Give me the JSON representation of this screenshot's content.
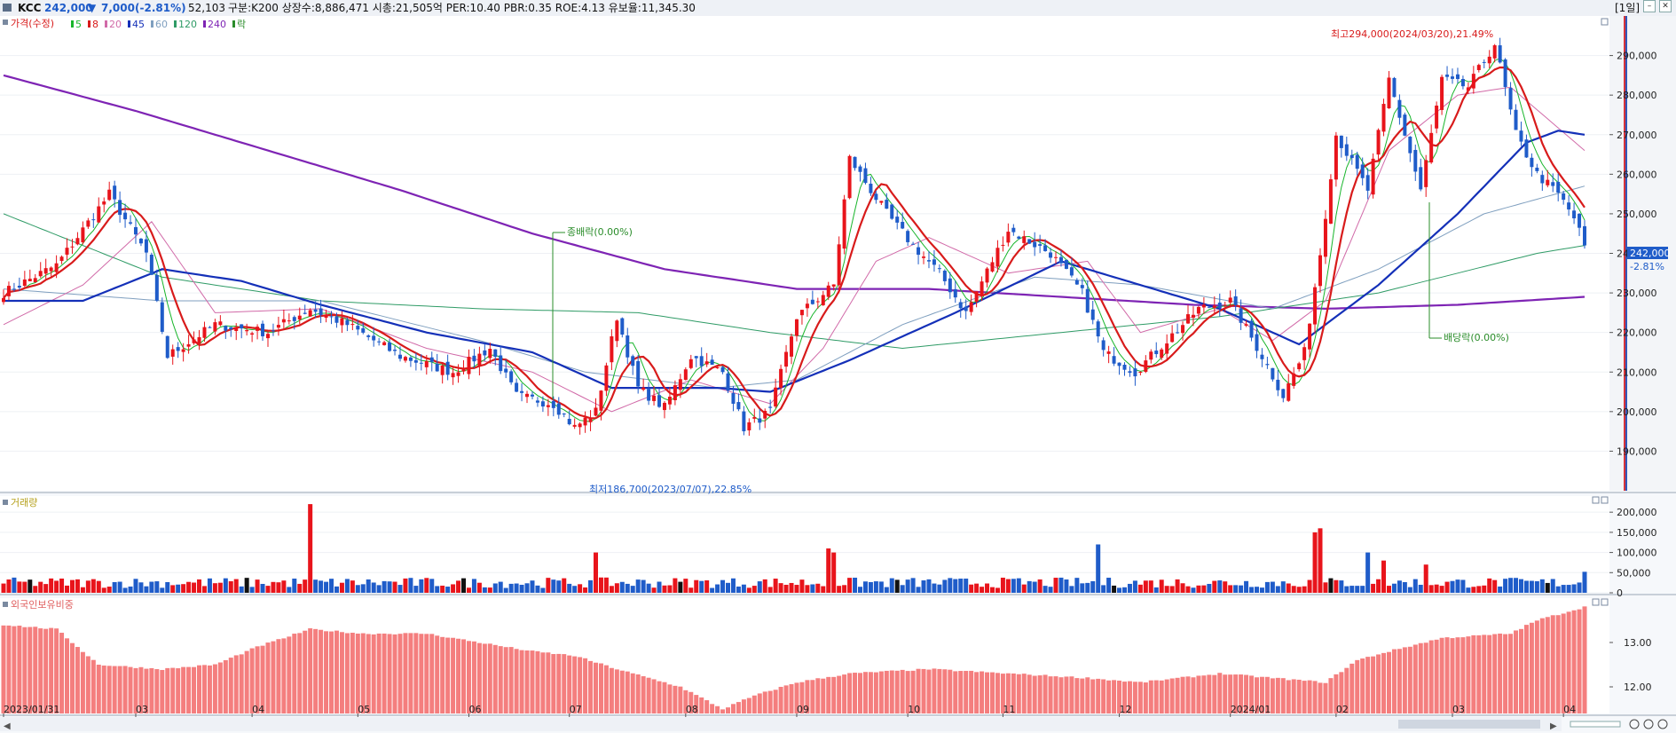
{
  "header": {
    "name": "KCC",
    "price": "242,000",
    "change_arrow": "▼",
    "change": "7,000",
    "change_pct": "(-2.81%)",
    "volume": "52,103",
    "info": "구분:K200  상장수:8,886,471  시총:21,505억  PER:10.40  PBR:0.35  ROE:4.13  유보율:11,345.30",
    "period": "[1일]"
  },
  "colors": {
    "up": "#e8141b",
    "down": "#1f5cc9",
    "ma5": "#18b52b",
    "ma8": "#d81b1b",
    "ma20": "#d16aa8",
    "ma45": "#1430b8",
    "ma60": "#7f9fbf",
    "ma120": "#2f9b66",
    "ma240": "#7e24b4",
    "foreign": "#f47e7e"
  },
  "legend": {
    "price_title": "가격(수정)",
    "items": [
      {
        "label": "5",
        "color": "#18b52b"
      },
      {
        "label": "8",
        "color": "#d81b1b"
      },
      {
        "label": "20",
        "color": "#d16aa8"
      },
      {
        "label": "45",
        "color": "#1430b8"
      },
      {
        "label": "60",
        "color": "#7f9fbf"
      },
      {
        "label": "120",
        "color": "#2f9b66"
      },
      {
        "label": "240",
        "color": "#7e24b4"
      },
      {
        "label": "락",
        "color": "#2a8c2a"
      }
    ],
    "volume_title": "거래량",
    "foreign_title": "외국인보유비중"
  },
  "annotations": {
    "high": "최고294,000(2024/03/20),21.49%",
    "low": "최저186,700(2023/07/07),22.85%",
    "ex_rights": "종배락(0.00%)",
    "ex_dividend": "배당락(0.00%)",
    "last_price": "242,000",
    "last_change": "-2.81%"
  },
  "chart_data": [
    {
      "type": "candlestick",
      "title": "가격(수정)",
      "y_ticks": [
        190000,
        200000,
        210000,
        220000,
        230000,
        240000,
        250000,
        260000,
        270000,
        280000,
        290000
      ],
      "y_tick_labels": [
        "190,000",
        "200,000",
        "210,000",
        "220,000",
        "230,000",
        "240,000",
        "250,000",
        "260,000",
        "270,000",
        "280,000",
        "290,000"
      ],
      "ylim": [
        180000,
        300000
      ],
      "x_ticks": [
        "2023/01/31",
        "03",
        "04",
        "05",
        "06",
        "07",
        "08",
        "09",
        "10",
        "11",
        "12",
        "2024/01",
        "02",
        "03",
        "04"
      ],
      "x_tick_index": [
        0,
        25,
        47,
        67,
        88,
        107,
        129,
        150,
        171,
        189,
        211,
        232,
        252,
        274,
        295
      ],
      "close_anchors": [
        [
          0,
          230000
        ],
        [
          10,
          237000
        ],
        [
          20,
          255000
        ],
        [
          27,
          240000
        ],
        [
          31,
          214000
        ],
        [
          40,
          222000
        ],
        [
          50,
          220000
        ],
        [
          58,
          226000
        ],
        [
          65,
          222000
        ],
        [
          75,
          214000
        ],
        [
          85,
          210000
        ],
        [
          92,
          216000
        ],
        [
          97,
          204000
        ],
        [
          104,
          202000
        ],
        [
          108,
          196000
        ],
        [
          112,
          200000
        ],
        [
          116,
          224000
        ],
        [
          120,
          206000
        ],
        [
          125,
          201000
        ],
        [
          130,
          214000
        ],
        [
          136,
          210000
        ],
        [
          140,
          196000
        ],
        [
          145,
          200000
        ],
        [
          150,
          224000
        ],
        [
          157,
          232000
        ],
        [
          160,
          264000
        ],
        [
          167,
          250000
        ],
        [
          172,
          242000
        ],
        [
          177,
          235000
        ],
        [
          182,
          225000
        ],
        [
          190,
          246000
        ],
        [
          198,
          240000
        ],
        [
          204,
          230000
        ],
        [
          208,
          215000
        ],
        [
          214,
          210000
        ],
        [
          220,
          218000
        ],
        [
          226,
          226000
        ],
        [
          232,
          228000
        ],
        [
          238,
          214000
        ],
        [
          242,
          204000
        ],
        [
          246,
          215000
        ],
        [
          249,
          240000
        ],
        [
          252,
          270000
        ],
        [
          258,
          256000
        ],
        [
          262,
          284000
        ],
        [
          268,
          256000
        ],
        [
          272,
          284000
        ],
        [
          277,
          282000
        ],
        [
          282,
          293000
        ],
        [
          286,
          270000
        ],
        [
          290,
          260000
        ],
        [
          294,
          255000
        ],
        [
          297,
          249000
        ],
        [
          299,
          242000
        ]
      ],
      "high": {
        "date": "2024/03/20",
        "value": 294000,
        "change_pct": 21.49
      },
      "low": {
        "date": "2023/07/07",
        "value": 186700,
        "change_pct": 22.85
      },
      "last_close": 242000,
      "last_change_pct": -2.81,
      "ma_anchors": {
        "ma240": [
          [
            0,
            285000
          ],
          [
            25,
            276000
          ],
          [
            50,
            266000
          ],
          [
            75,
            256000
          ],
          [
            100,
            245000
          ],
          [
            125,
            236000
          ],
          [
            150,
            231000
          ],
          [
            175,
            231000
          ],
          [
            200,
            229000
          ],
          [
            225,
            227000
          ],
          [
            250,
            226000
          ],
          [
            275,
            227000
          ],
          [
            299,
            229000
          ]
        ],
        "ma120": [
          [
            0,
            250000
          ],
          [
            30,
            234000
          ],
          [
            60,
            228000
          ],
          [
            90,
            226000
          ],
          [
            120,
            225000
          ],
          [
            145,
            220000
          ],
          [
            170,
            216000
          ],
          [
            200,
            220000
          ],
          [
            230,
            224000
          ],
          [
            260,
            230000
          ],
          [
            290,
            240000
          ],
          [
            299,
            242000
          ]
        ],
        "ma60": [
          [
            0,
            231000
          ],
          [
            30,
            228000
          ],
          [
            60,
            228000
          ],
          [
            90,
            218000
          ],
          [
            110,
            210000
          ],
          [
            135,
            206000
          ],
          [
            150,
            208000
          ],
          [
            170,
            222000
          ],
          [
            195,
            234000
          ],
          [
            215,
            232000
          ],
          [
            240,
            226000
          ],
          [
            260,
            236000
          ],
          [
            280,
            250000
          ],
          [
            299,
            257000
          ]
        ],
        "ma45": [
          [
            0,
            228000
          ],
          [
            15,
            228000
          ],
          [
            30,
            236000
          ],
          [
            45,
            233000
          ],
          [
            60,
            227000
          ],
          [
            80,
            220000
          ],
          [
            100,
            215000
          ],
          [
            115,
            206000
          ],
          [
            135,
            206000
          ],
          [
            145,
            205000
          ],
          [
            160,
            213000
          ],
          [
            180,
            225000
          ],
          [
            200,
            238000
          ],
          [
            215,
            232000
          ],
          [
            230,
            226000
          ],
          [
            245,
            217000
          ],
          [
            260,
            232000
          ],
          [
            275,
            250000
          ],
          [
            288,
            268000
          ],
          [
            294,
            271000
          ],
          [
            299,
            270000
          ]
        ],
        "ma20": [
          [
            0,
            222000
          ],
          [
            15,
            232000
          ],
          [
            28,
            248000
          ],
          [
            40,
            225000
          ],
          [
            60,
            226000
          ],
          [
            80,
            216000
          ],
          [
            100,
            210000
          ],
          [
            115,
            200000
          ],
          [
            130,
            208000
          ],
          [
            145,
            202000
          ],
          [
            155,
            216000
          ],
          [
            165,
            238000
          ],
          [
            175,
            244000
          ],
          [
            190,
            235000
          ],
          [
            205,
            238000
          ],
          [
            215,
            220000
          ],
          [
            230,
            226000
          ],
          [
            240,
            218000
          ],
          [
            250,
            228000
          ],
          [
            262,
            266000
          ],
          [
            275,
            280000
          ],
          [
            285,
            282000
          ],
          [
            299,
            266000
          ]
        ]
      }
    },
    {
      "type": "bar",
      "title": "거래량",
      "y_ticks": [
        0,
        50000,
        100000,
        150000,
        200000
      ],
      "y_tick_labels": [
        "0",
        "50,000",
        "100,000",
        "150,000",
        "200,000"
      ],
      "ylim": [
        0,
        240000
      ],
      "spikes": [
        [
          58,
          220000
        ],
        [
          112,
          100000
        ],
        [
          156,
          110000
        ],
        [
          157,
          100000
        ],
        [
          207,
          120000
        ],
        [
          248,
          150000
        ],
        [
          249,
          160000
        ],
        [
          258,
          100000
        ],
        [
          261,
          80000
        ],
        [
          269,
          70000
        ]
      ],
      "last_volume": 52103
    },
    {
      "type": "bar",
      "title": "외국인보유비중",
      "y_ticks": [
        12.0,
        13.0
      ],
      "y_tick_labels": [
        "12.00",
        "13.00"
      ],
      "ylim": [
        11.4,
        14.0
      ],
      "anchors": [
        [
          0,
          13.4
        ],
        [
          10,
          13.3
        ],
        [
          18,
          12.5
        ],
        [
          30,
          12.4
        ],
        [
          40,
          12.5
        ],
        [
          48,
          12.9
        ],
        [
          58,
          13.3
        ],
        [
          68,
          13.2
        ],
        [
          80,
          13.2
        ],
        [
          90,
          13.0
        ],
        [
          100,
          12.8
        ],
        [
          108,
          12.7
        ],
        [
          116,
          12.4
        ],
        [
          128,
          12.0
        ],
        [
          136,
          11.5
        ],
        [
          142,
          11.8
        ],
        [
          150,
          12.1
        ],
        [
          160,
          12.3
        ],
        [
          175,
          12.4
        ],
        [
          190,
          12.3
        ],
        [
          205,
          12.2
        ],
        [
          215,
          12.1
        ],
        [
          230,
          12.3
        ],
        [
          240,
          12.2
        ],
        [
          250,
          12.1
        ],
        [
          256,
          12.6
        ],
        [
          262,
          12.8
        ],
        [
          272,
          13.1
        ],
        [
          285,
          13.2
        ],
        [
          290,
          13.5
        ],
        [
          299,
          13.8
        ]
      ]
    }
  ]
}
